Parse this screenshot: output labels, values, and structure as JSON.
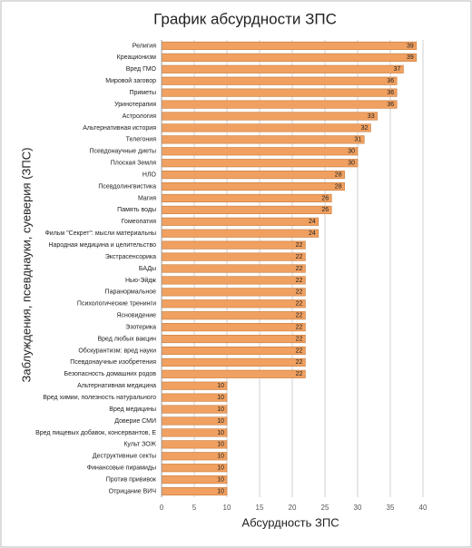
{
  "chart_data": {
    "type": "bar",
    "orientation": "horizontal",
    "title": "График абсурдности ЗПС",
    "x_label": "Абсурдность ЗПС",
    "y_label": "Заблуждения, псевднауки, суеверия (ЗПС)",
    "categories": [
      "Религия",
      "Креационизм",
      "Вред ГМО",
      "Мировой заговор",
      "Приметы",
      "Уринотерапия",
      "Астрология",
      "Альтернативная история",
      "Телегония",
      "Псевдонаучные диеты",
      "Плоская Земля",
      "НЛО",
      "Псевдолингвистика",
      "Магия",
      "Память воды",
      "Гомеопатия",
      "Фильм \"Секрет\": мысли материальны",
      "Народная медицина и целительство",
      "Экстрасенсорика",
      "БАДы",
      "Нью-Эйдж",
      "Паранормальное",
      "Психологические тренинги",
      "Ясновидение",
      "Эзотерика",
      "Вред любых вакцин",
      "Обскурантизм: вред науки",
      "Псевдонаучные изобретения",
      "Безопасность домашних родов",
      "Альтернативная медицина",
      "Вред химии, полезность натурального",
      "Вред медицины",
      "Доверие СМИ",
      "Вред пищевых добавок, консервантов, Е",
      "Культ ЗОЖ",
      "Деструктивные секты",
      "Финансовые пирамиды",
      "Против прививок",
      "Отрицание ВИЧ"
    ],
    "values": [
      39,
      39,
      37,
      36,
      36,
      36,
      33,
      32,
      31,
      30,
      30,
      28,
      28,
      26,
      26,
      24,
      24,
      22,
      22,
      22,
      22,
      22,
      22,
      22,
      22,
      22,
      22,
      22,
      22,
      10,
      10,
      10,
      10,
      10,
      10,
      10,
      10,
      10,
      10
    ],
    "color": "#f0a060",
    "xlim": [
      0,
      42.5
    ],
    "xticks": [
      0,
      5,
      10,
      15,
      20,
      25,
      30,
      35,
      40
    ],
    "grid": true
  }
}
